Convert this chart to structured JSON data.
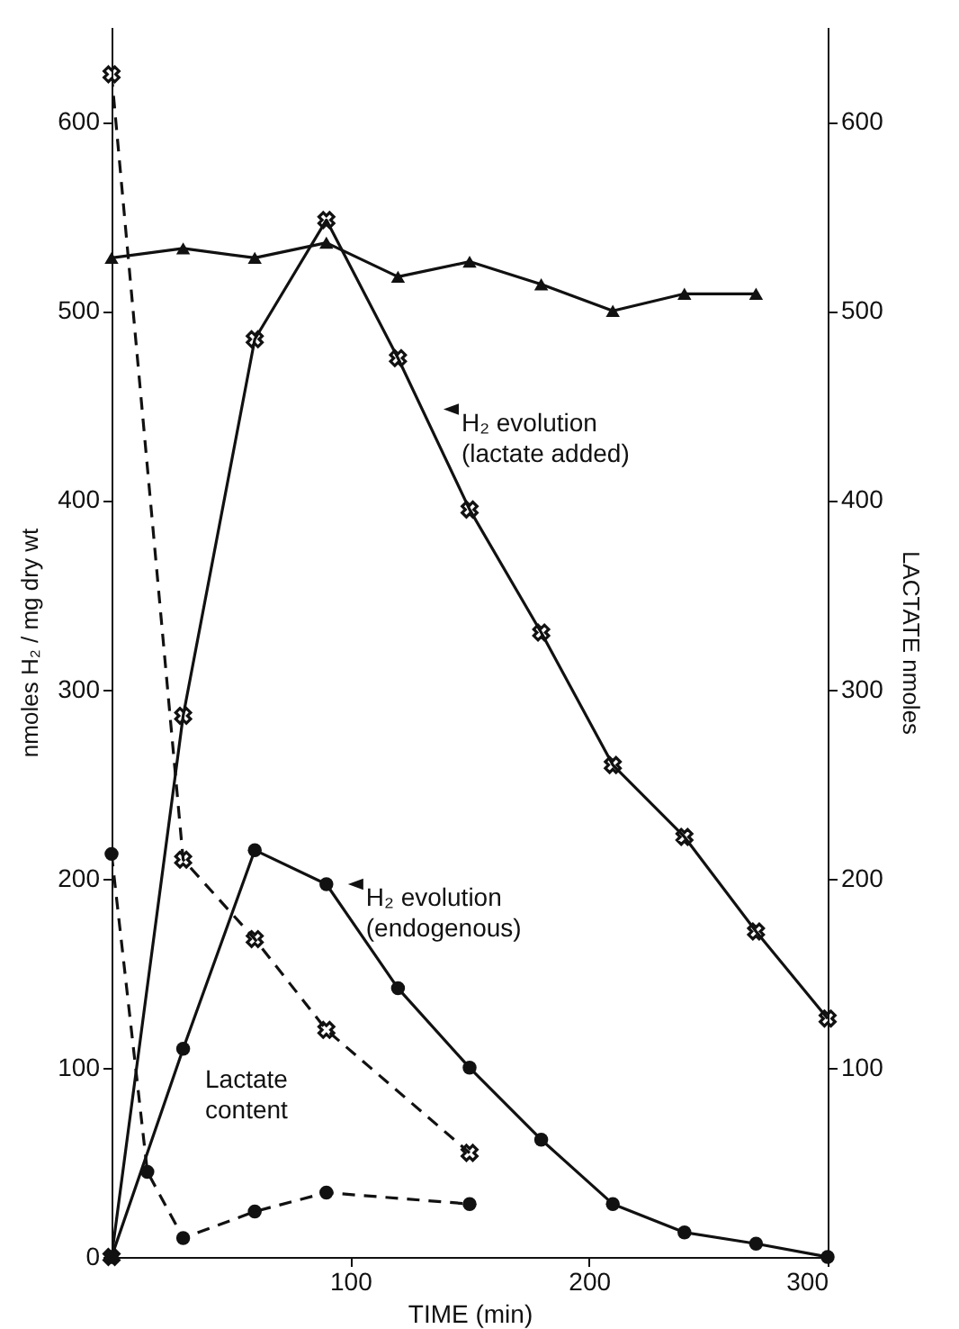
{
  "chart_data": {
    "type": "line",
    "xlabel": "TIME (min)",
    "ylabel": "nmoles H₂ / mg dry wt",
    "y2label": "LACTATE nmoles",
    "xlim": [
      0,
      300
    ],
    "xticks": [
      100,
      200,
      300
    ],
    "ylim": [
      0,
      650
    ],
    "yticks": [
      0,
      100,
      200,
      300,
      400,
      500,
      600
    ],
    "y2lim": [
      0,
      650
    ],
    "y2ticks": [
      100,
      200,
      300,
      400,
      500,
      600
    ],
    "grid": false,
    "series": [
      {
        "color": "#111111",
        "marker": "triangle",
        "line_style": "solid",
        "x": [
          0,
          30,
          60,
          90,
          120,
          150,
          180,
          210,
          240,
          270
        ],
        "values": [
          528,
          533,
          528,
          536,
          518,
          526,
          514,
          500,
          509,
          509
        ]
      },
      {
        "color": "#111111",
        "marker": "cross",
        "line_style": "solid",
        "x": [
          0,
          30,
          60,
          90,
          120,
          150,
          180,
          210,
          240,
          270,
          300
        ],
        "values": [
          0,
          286,
          485,
          548,
          475,
          395,
          330,
          260,
          222,
          172,
          126
        ]
      },
      {
        "color": "#111111",
        "marker": "circle",
        "line_style": "solid",
        "x": [
          0,
          30,
          60,
          90,
          120,
          150,
          180,
          210,
          240,
          270,
          300
        ],
        "values": [
          0,
          110,
          215,
          197,
          142,
          100,
          62,
          28,
          13,
          7,
          0
        ]
      },
      {
        "color": "#111111",
        "marker": "cross",
        "line_style": "dashed",
        "axis": "y2",
        "x": [
          0,
          30,
          60,
          90,
          150
        ],
        "values": [
          625,
          210,
          168,
          120,
          55
        ]
      },
      {
        "color": "#111111",
        "marker": "circle",
        "line_style": "dashed",
        "axis": "y2",
        "x": [
          0,
          15,
          30,
          60,
          90,
          150
        ],
        "values": [
          213,
          45,
          10,
          24,
          34,
          28
        ]
      }
    ],
    "annotations": [
      {
        "text": "H₂ evolution\n(lactate added)",
        "x": 130,
        "y": 448
      },
      {
        "text": "H₂ evolution\n(endogenous)",
        "x": 90,
        "y": 197
      },
      "Lactate\ncontent"
    ]
  }
}
